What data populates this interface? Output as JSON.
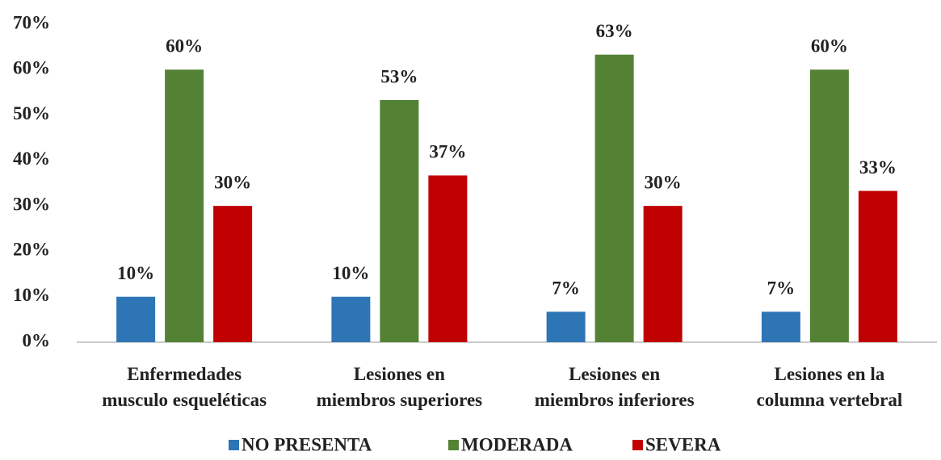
{
  "chart_data": {
    "type": "bar",
    "categories": [
      [
        "Enfermedades",
        "musculo esqueléticas"
      ],
      [
        "Lesiones en",
        "miembros superiores"
      ],
      [
        "Lesiones en",
        "miembros inferiores"
      ],
      [
        "Lesiones en la",
        "columna vertebral"
      ]
    ],
    "series": [
      {
        "name": "NO PRESENTA",
        "color": "#2e75b6",
        "values": [
          10,
          10,
          6.7,
          6.7
        ],
        "value_labels": [
          "10%",
          "10%",
          "7%",
          "7%"
        ]
      },
      {
        "name": "MODERADA",
        "color": "#548235",
        "values": [
          60,
          53.3,
          63.3,
          60
        ],
        "value_labels": [
          "60%",
          "53%",
          "63%",
          "60%"
        ]
      },
      {
        "name": "SEVERA",
        "color": "#c00000",
        "values": [
          30,
          36.7,
          30,
          33.3
        ],
        "value_labels": [
          "30%",
          "37%",
          "30%",
          "33%"
        ]
      }
    ],
    "ylim": [
      0,
      70
    ],
    "yticks": [
      {
        "value": 0,
        "label": "0%"
      },
      {
        "value": 10,
        "label": "10%"
      },
      {
        "value": 20,
        "label": "20%"
      },
      {
        "value": 30,
        "label": "30%"
      },
      {
        "value": 40,
        "label": "40%"
      },
      {
        "value": 50,
        "label": "50%"
      },
      {
        "value": 60,
        "label": "60%"
      },
      {
        "value": 70,
        "label": "70%"
      }
    ],
    "grid": false,
    "legend": "bottom"
  }
}
